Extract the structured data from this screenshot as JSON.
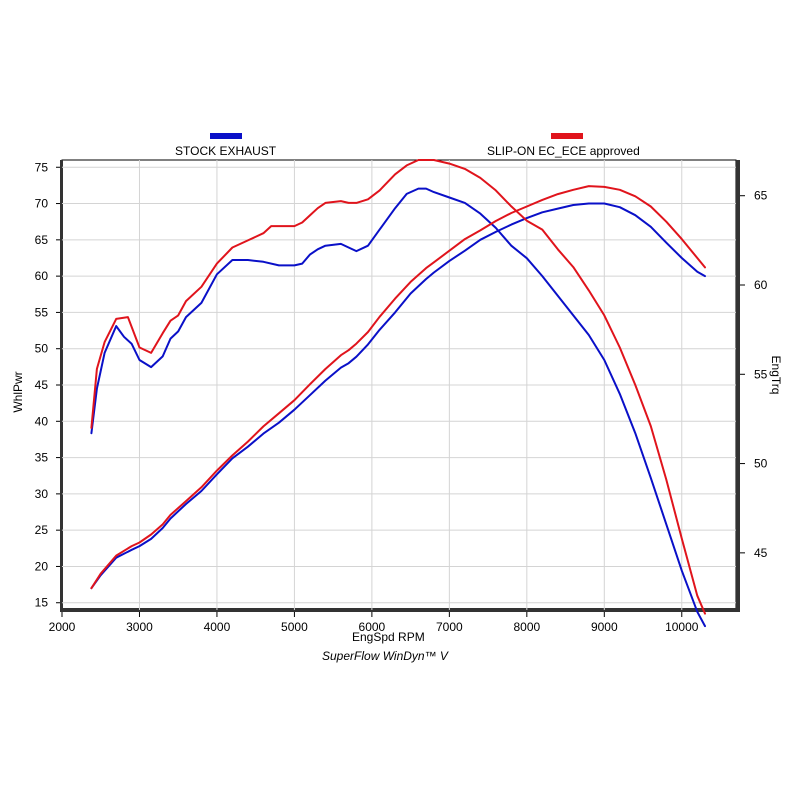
{
  "chart_data": {
    "type": "line",
    "xlabel": "EngSpd  RPM",
    "ylabel_left": "WhlPwr",
    "ylabel_right": "EngTrq",
    "footer": "SuperFlow WinDyn™ V",
    "xlim": [
      2000,
      10700
    ],
    "ylim_left": [
      14,
      76
    ],
    "ylim_right": [
      41.8,
      67.0
    ],
    "x_ticks": [
      2000,
      3000,
      4000,
      5000,
      6000,
      7000,
      8000,
      9000,
      10000
    ],
    "y_left_ticks": [
      15,
      20,
      25,
      30,
      35,
      40,
      45,
      50,
      55,
      60,
      65,
      70,
      75
    ],
    "y_right_ticks": [
      45,
      50,
      55,
      60,
      65
    ],
    "grid": true,
    "legend_position": "top",
    "legend": [
      {
        "name": "STOCK EXHAUST",
        "color": "#0a10c8"
      },
      {
        "name": "SLIP-ON EC_ECE approved",
        "color": "#e0141c"
      }
    ],
    "series": [
      {
        "name": "STOCK EXHAUST",
        "metric": "WhlPwr",
        "axis": "left",
        "color": "#0a10c8",
        "x": [
          2380,
          2500,
          2700,
          2900,
          3000,
          3150,
          3300,
          3400,
          3600,
          3800,
          4000,
          4200,
          4400,
          4600,
          4800,
          5000,
          5200,
          5400,
          5600,
          5700,
          5800,
          5950,
          6100,
          6300,
          6500,
          6700,
          6800,
          7000,
          7200,
          7400,
          7600,
          7800,
          8000,
          8200,
          8400,
          8600,
          8800,
          9000,
          9200,
          9400,
          9600,
          9800,
          10000,
          10200,
          10300
        ],
        "y": [
          17.0,
          18.8,
          21.2,
          22.3,
          22.8,
          23.8,
          25.3,
          26.6,
          28.6,
          30.4,
          32.7,
          34.9,
          36.5,
          38.3,
          39.8,
          41.6,
          43.6,
          45.6,
          47.4,
          48.0,
          48.9,
          50.6,
          52.6,
          55.0,
          57.6,
          59.6,
          60.5,
          62.1,
          63.5,
          65.0,
          66.1,
          67.1,
          68.0,
          68.8,
          69.3,
          69.8,
          70.0,
          70.0,
          69.5,
          68.4,
          66.8,
          64.6,
          62.5,
          60.6,
          60.0
        ]
      },
      {
        "name": "STOCK EXHAUST",
        "metric": "EngTrq",
        "axis": "right",
        "color": "#0a10c8",
        "x": [
          2380,
          2450,
          2550,
          2700,
          2800,
          2900,
          3000,
          3150,
          3300,
          3400,
          3500,
          3600,
          3800,
          4000,
          4200,
          4400,
          4600,
          4800,
          5000,
          5100,
          5200,
          5300,
          5400,
          5600,
          5700,
          5800,
          5950,
          6100,
          6300,
          6450,
          6600,
          6700,
          6800,
          7000,
          7200,
          7400,
          7600,
          7800,
          8000,
          8200,
          8400,
          8600,
          8800,
          9000,
          9200,
          9400,
          9600,
          9800,
          10000,
          10200,
          10300
        ],
        "y": [
          51.7,
          54.2,
          56.2,
          57.7,
          57.1,
          56.7,
          55.8,
          55.4,
          56.0,
          57.0,
          57.4,
          58.2,
          59.0,
          60.6,
          61.4,
          61.4,
          61.3,
          61.1,
          61.1,
          61.2,
          61.7,
          62.0,
          62.2,
          62.3,
          62.1,
          61.9,
          62.2,
          63.1,
          64.3,
          65.1,
          65.4,
          65.4,
          65.2,
          64.9,
          64.6,
          64.0,
          63.2,
          62.2,
          61.5,
          60.5,
          59.4,
          58.3,
          57.2,
          55.8,
          53.9,
          51.7,
          49.2,
          46.6,
          44.0,
          41.7,
          40.9
        ]
      },
      {
        "name": "SLIP-ON EC_ECE approved",
        "metric": "WhlPwr",
        "axis": "left",
        "color": "#e0141c",
        "x": [
          2380,
          2500,
          2700,
          2900,
          3000,
          3150,
          3300,
          3400,
          3600,
          3800,
          4000,
          4200,
          4400,
          4600,
          4800,
          5000,
          5200,
          5400,
          5600,
          5700,
          5800,
          5950,
          6100,
          6300,
          6500,
          6700,
          6800,
          7000,
          7200,
          7400,
          7600,
          7800,
          8000,
          8200,
          8400,
          8600,
          8800,
          9000,
          9200,
          9400,
          9600,
          9800,
          10000,
          10200,
          10300
        ],
        "y": [
          17.0,
          19.0,
          21.5,
          22.8,
          23.3,
          24.4,
          25.8,
          27.1,
          29.0,
          30.9,
          33.2,
          35.3,
          37.2,
          39.3,
          41.1,
          42.9,
          45.1,
          47.2,
          49.1,
          49.8,
          50.7,
          52.3,
          54.4,
          56.9,
          59.2,
          61.1,
          61.9,
          63.5,
          65.1,
          66.3,
          67.6,
          68.7,
          69.6,
          70.5,
          71.3,
          71.9,
          72.4,
          72.3,
          71.9,
          71.0,
          69.6,
          67.5,
          65.1,
          62.5,
          61.2
        ]
      },
      {
        "name": "SLIP-ON EC_ECE approved",
        "metric": "EngTrq",
        "axis": "right",
        "color": "#e0141c",
        "x": [
          2380,
          2450,
          2550,
          2700,
          2850,
          3000,
          3150,
          3300,
          3400,
          3500,
          3600,
          3800,
          4000,
          4200,
          4400,
          4600,
          4700,
          4800,
          5000,
          5100,
          5200,
          5300,
          5400,
          5600,
          5700,
          5800,
          5950,
          6100,
          6300,
          6450,
          6600,
          6700,
          6800,
          7000,
          7200,
          7400,
          7600,
          7800,
          8000,
          8200,
          8400,
          8600,
          8800,
          9000,
          9200,
          9400,
          9600,
          9800,
          10000,
          10200,
          10300
        ],
        "y": [
          52.0,
          55.3,
          56.8,
          58.1,
          58.2,
          56.5,
          56.2,
          57.3,
          58.0,
          58.3,
          59.1,
          59.9,
          61.2,
          62.1,
          62.5,
          62.9,
          63.3,
          63.3,
          63.3,
          63.5,
          63.9,
          64.3,
          64.6,
          64.7,
          64.6,
          64.6,
          64.8,
          65.3,
          66.2,
          66.7,
          67.0,
          67.0,
          67.0,
          66.8,
          66.5,
          66.0,
          65.3,
          64.4,
          63.6,
          63.1,
          62.0,
          61.0,
          59.7,
          58.3,
          56.5,
          54.4,
          52.1,
          49.1,
          45.8,
          42.6,
          41.6
        ]
      }
    ]
  }
}
